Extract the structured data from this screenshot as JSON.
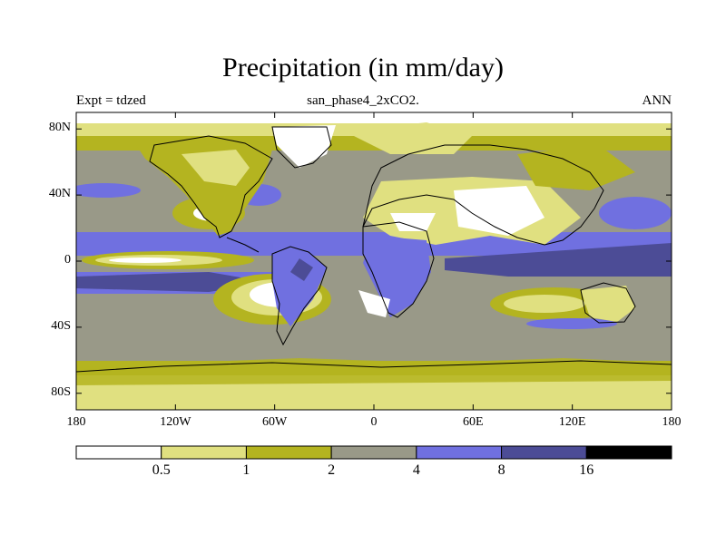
{
  "title": "Precipitation (in mm/day)",
  "subtitle": "san_phase4_2xCO2.",
  "left_label": "Expt = tdzed",
  "right_label": "ANN",
  "map": {
    "lon_range": [
      -180,
      180
    ],
    "lat_range": [
      -90,
      90
    ],
    "x_ticks": [
      "180",
      "120W",
      "60W",
      "0",
      "60E",
      "120E",
      "180"
    ],
    "y_ticks": [
      "80N",
      "40N",
      "0",
      "40S",
      "80S"
    ]
  },
  "legend": {
    "levels": [
      "0.5",
      "1",
      "2",
      "4",
      "8",
      "16"
    ],
    "colors": [
      "#ffffff",
      "#e0e080",
      "#b4b420",
      "#999988",
      "#7070e0",
      "#4c4c96",
      "#000000"
    ]
  }
}
